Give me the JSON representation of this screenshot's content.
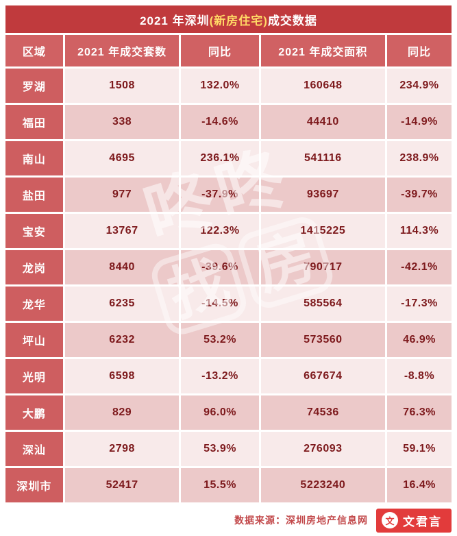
{
  "title": {
    "prefix": "2021 年深圳",
    "highlight": "(新房住宅)",
    "suffix": "成交数据"
  },
  "chart_data": {
    "type": "table",
    "title": "2021 年深圳(新房住宅)成交数据",
    "columns": [
      "区域",
      "2021 年成交套数",
      "同比",
      "2021 年成交面积",
      "同比"
    ],
    "rows": [
      {
        "region": "罗湖",
        "units": "1508",
        "units_yoy": "132.0%",
        "area": "160648",
        "area_yoy": "234.9%"
      },
      {
        "region": "福田",
        "units": "338",
        "units_yoy": "-14.6%",
        "area": "44410",
        "area_yoy": "-14.9%"
      },
      {
        "region": "南山",
        "units": "4695",
        "units_yoy": "236.1%",
        "area": "541116",
        "area_yoy": "238.9%"
      },
      {
        "region": "盐田",
        "units": "977",
        "units_yoy": "-37.9%",
        "area": "93697",
        "area_yoy": "-39.7%"
      },
      {
        "region": "宝安",
        "units": "13767",
        "units_yoy": "122.3%",
        "area": "1415225",
        "area_yoy": "114.3%"
      },
      {
        "region": "龙岗",
        "units": "8440",
        "units_yoy": "-39.6%",
        "area": "790717",
        "area_yoy": "-42.1%"
      },
      {
        "region": "龙华",
        "units": "6235",
        "units_yoy": "-14.5%",
        "area": "585564",
        "area_yoy": "-17.3%"
      },
      {
        "region": "坪山",
        "units": "6232",
        "units_yoy": "53.2%",
        "area": "573560",
        "area_yoy": "46.9%"
      },
      {
        "region": "光明",
        "units": "6598",
        "units_yoy": "-13.2%",
        "area": "667674",
        "area_yoy": "-8.8%"
      },
      {
        "region": "大鹏",
        "units": "829",
        "units_yoy": "96.0%",
        "area": "74536",
        "area_yoy": "76.3%"
      },
      {
        "region": "深汕",
        "units": "2798",
        "units_yoy": "53.9%",
        "area": "276093",
        "area_yoy": "59.1%"
      },
      {
        "region": "深圳市",
        "units": "52417",
        "units_yoy": "15.5%",
        "area": "5223240",
        "area_yoy": "16.4%"
      }
    ]
  },
  "watermark": {
    "line1": "咚咚",
    "line2_chars": [
      "找",
      "房"
    ]
  },
  "footer": {
    "source_label": "数据来源：",
    "source_name": "深圳房地产信息网",
    "badge": "文君言",
    "badge_icon_glyph": "文"
  },
  "colors": {
    "title_bg": "#c03a3d",
    "title_highlight": "#ffd966",
    "header_bg": "#d06163",
    "region_bg": "#ce5e60",
    "row_light": "#f8eaea",
    "row_dark": "#ecc9c9",
    "value_text": "#7d191c",
    "badge_bg": "#e23b3b"
  }
}
